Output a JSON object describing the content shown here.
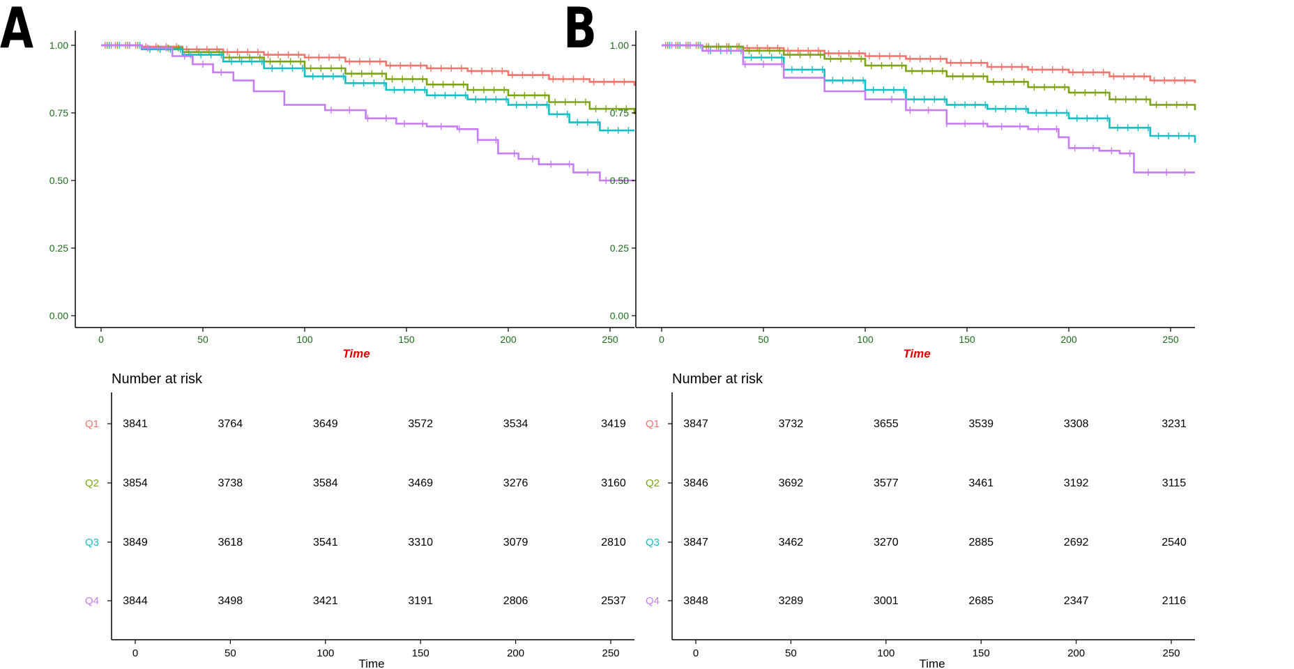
{
  "colors": {
    "Q1": "#f0756d",
    "Q2": "#7ca416",
    "Q3": "#13bfc5",
    "Q4": "#c77cf4",
    "tick_text": "#1d6b1d",
    "axis_title": "#e00000",
    "axis": "#000000"
  },
  "chart_data": [
    {
      "type": "line",
      "subtype": "kaplan-meier",
      "panel_label": "A",
      "xlabel": "Time",
      "ylabel": "",
      "xlim": [
        -12,
        262
      ],
      "ylim": [
        -0.05,
        1.05
      ],
      "x_ticks": [
        0,
        50,
        100,
        150,
        200,
        250
      ],
      "y_ticks": [
        0.0,
        0.25,
        0.5,
        0.75,
        1.0
      ],
      "y_tick_labels": [
        "0.00",
        "0.25",
        "0.50",
        "0.75",
        "1.00"
      ],
      "grid": false,
      "series": [
        {
          "name": "Q1",
          "color": "#f0756d",
          "x": [
            0,
            20,
            40,
            60,
            80,
            100,
            120,
            140,
            160,
            180,
            200,
            220,
            240,
            262
          ],
          "y": [
            1.0,
            0.995,
            0.985,
            0.975,
            0.965,
            0.955,
            0.94,
            0.925,
            0.915,
            0.905,
            0.89,
            0.875,
            0.865,
            0.85
          ]
        },
        {
          "name": "Q2",
          "color": "#7ca416",
          "x": [
            0,
            20,
            40,
            60,
            80,
            100,
            120,
            140,
            160,
            180,
            200,
            220,
            240,
            262
          ],
          "y": [
            1.0,
            0.99,
            0.975,
            0.955,
            0.94,
            0.915,
            0.895,
            0.875,
            0.855,
            0.835,
            0.815,
            0.79,
            0.765,
            0.745
          ]
        },
        {
          "name": "Q3",
          "color": "#13bfc5",
          "x": [
            0,
            20,
            40,
            60,
            80,
            100,
            120,
            140,
            160,
            180,
            200,
            220,
            230,
            245,
            262
          ],
          "y": [
            1.0,
            0.985,
            0.965,
            0.94,
            0.915,
            0.885,
            0.86,
            0.835,
            0.815,
            0.8,
            0.78,
            0.745,
            0.715,
            0.685,
            0.685
          ]
        },
        {
          "name": "Q4",
          "color": "#c77cf4",
          "x": [
            0,
            20,
            35,
            45,
            55,
            65,
            75,
            90,
            110,
            130,
            145,
            160,
            175,
            185,
            195,
            205,
            215,
            225,
            232,
            245,
            262
          ],
          "y": [
            1.0,
            0.99,
            0.96,
            0.93,
            0.9,
            0.87,
            0.83,
            0.78,
            0.76,
            0.73,
            0.71,
            0.7,
            0.69,
            0.65,
            0.6,
            0.58,
            0.56,
            0.56,
            0.53,
            0.5,
            0.5
          ]
        }
      ],
      "risk_table": {
        "title": "Number at risk",
        "xlabel": "Time",
        "times": [
          0,
          50,
          100,
          150,
          200,
          250
        ],
        "time_labels": [
          "0",
          "50",
          "100",
          "150",
          "200",
          "250"
        ],
        "groups": [
          {
            "name": "Q1",
            "color": "#f0756d",
            "counts": [
              "3841",
              "3764",
              "3649",
              "3572",
              "3534",
              "3419"
            ]
          },
          {
            "name": "Q2",
            "color": "#7ca416",
            "counts": [
              "3854",
              "3738",
              "3584",
              "3469",
              "3276",
              "3160"
            ]
          },
          {
            "name": "Q3",
            "color": "#13bfc5",
            "counts": [
              "3849",
              "3618",
              "3541",
              "3310",
              "3079",
              "2810"
            ]
          },
          {
            "name": "Q4",
            "color": "#c77cf4",
            "counts": [
              "3844",
              "3498",
              "3421",
              "3191",
              "2806",
              "2537"
            ]
          }
        ]
      }
    },
    {
      "type": "line",
      "subtype": "kaplan-meier",
      "panel_label": "B",
      "xlabel": "Time",
      "ylabel": "",
      "xlim": [
        -12,
        262
      ],
      "ylim": [
        -0.05,
        1.05
      ],
      "x_ticks": [
        0,
        50,
        100,
        150,
        200,
        250
      ],
      "y_ticks": [
        0.0,
        0.25,
        0.5,
        0.75,
        1.0
      ],
      "y_tick_labels": [
        "0.00",
        "0.25",
        "0.50",
        "0.75",
        "1.00"
      ],
      "grid": false,
      "series": [
        {
          "name": "Q1",
          "color": "#f0756d",
          "x": [
            0,
            20,
            40,
            60,
            80,
            100,
            120,
            140,
            160,
            180,
            200,
            220,
            240,
            262
          ],
          "y": [
            1.0,
            0.995,
            0.99,
            0.98,
            0.97,
            0.96,
            0.95,
            0.935,
            0.92,
            0.91,
            0.9,
            0.885,
            0.87,
            0.86
          ]
        },
        {
          "name": "Q2",
          "color": "#7ca416",
          "x": [
            0,
            20,
            40,
            60,
            80,
            100,
            120,
            140,
            160,
            180,
            200,
            220,
            240,
            262
          ],
          "y": [
            1.0,
            0.995,
            0.98,
            0.965,
            0.95,
            0.925,
            0.905,
            0.885,
            0.865,
            0.845,
            0.825,
            0.8,
            0.78,
            0.76
          ]
        },
        {
          "name": "Q3",
          "color": "#13bfc5",
          "x": [
            0,
            20,
            40,
            60,
            80,
            100,
            120,
            140,
            160,
            180,
            200,
            220,
            240,
            262
          ],
          "y": [
            1.0,
            0.98,
            0.955,
            0.91,
            0.87,
            0.835,
            0.8,
            0.78,
            0.765,
            0.75,
            0.73,
            0.695,
            0.665,
            0.64
          ]
        },
        {
          "name": "Q4",
          "color": "#c77cf4",
          "x": [
            0,
            20,
            40,
            60,
            80,
            100,
            120,
            140,
            160,
            180,
            195,
            200,
            215,
            225,
            232,
            245,
            262
          ],
          "y": [
            1.0,
            0.98,
            0.93,
            0.88,
            0.83,
            0.8,
            0.76,
            0.71,
            0.7,
            0.69,
            0.66,
            0.62,
            0.61,
            0.6,
            0.53,
            0.53,
            0.53
          ]
        }
      ],
      "risk_table": {
        "title": "Number at risk",
        "xlabel": "Time",
        "times": [
          0,
          50,
          100,
          150,
          200,
          250
        ],
        "time_labels": [
          "0",
          "50",
          "100",
          "150",
          "200",
          "250"
        ],
        "groups": [
          {
            "name": "Q1",
            "color": "#f0756d",
            "counts": [
              "3847",
              "3732",
              "3655",
              "3539",
              "3308",
              "3231"
            ]
          },
          {
            "name": "Q2",
            "color": "#7ca416",
            "counts": [
              "3846",
              "3692",
              "3577",
              "3461",
              "3192",
              "3115"
            ]
          },
          {
            "name": "Q3",
            "color": "#13bfc5",
            "counts": [
              "3847",
              "3462",
              "3270",
              "2885",
              "2692",
              "2540"
            ]
          },
          {
            "name": "Q4",
            "color": "#c77cf4",
            "counts": [
              "3848",
              "3289",
              "3001",
              "2685",
              "2347",
              "2116"
            ]
          }
        ]
      }
    }
  ]
}
